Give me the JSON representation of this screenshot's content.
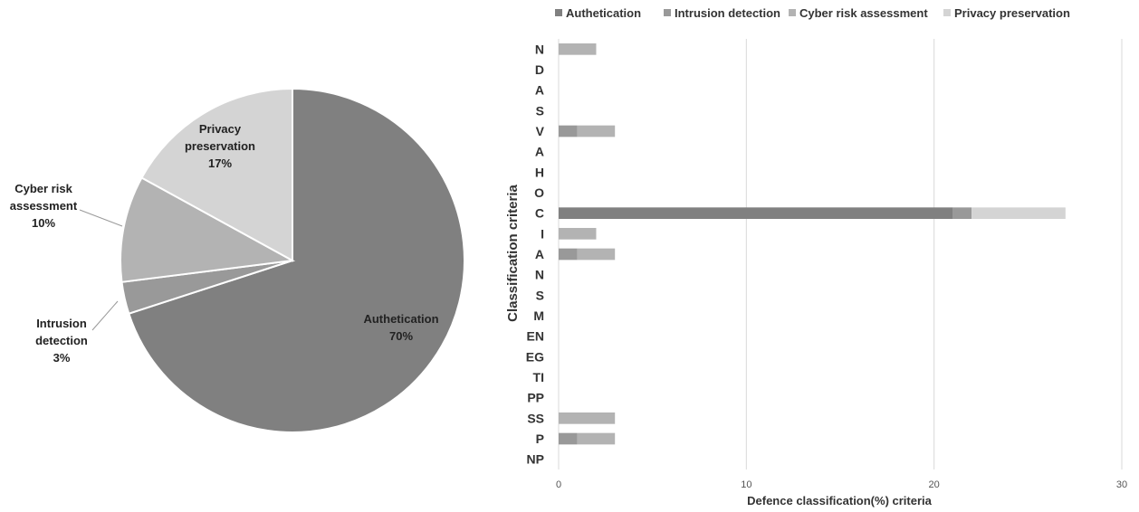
{
  "chart_data": [
    {
      "type": "pie",
      "labels": [
        "Authetication",
        "Intrusion detection",
        "Cyber risk assessment",
        "Privacy preservation"
      ],
      "label_lines": [
        [
          "Authetication"
        ],
        [
          "Intrusion",
          "detection"
        ],
        [
          "Cyber risk",
          "assessment"
        ],
        [
          "Privacy",
          "preservation"
        ]
      ],
      "values": [
        70,
        3,
        10,
        17
      ],
      "percent_labels": [
        "70%",
        "3%",
        "10%",
        "17%"
      ],
      "colors": [
        "#808080",
        "#999999",
        "#b3b3b3",
        "#d4d4d4"
      ]
    },
    {
      "type": "bar",
      "orientation": "horizontal",
      "stacked": true,
      "categories": [
        "N",
        "D",
        "A",
        "S",
        "V",
        "A",
        "H",
        "O",
        "C",
        "I",
        "A",
        "N",
        "S",
        "M",
        "EN",
        "EG",
        "TI",
        "PP",
        "SS",
        "P",
        "NP"
      ],
      "series": [
        {
          "name": "Authetication",
          "color": "#808080",
          "values": [
            0,
            0,
            0,
            0,
            0,
            0,
            0,
            0,
            21,
            0,
            0,
            0,
            0,
            0,
            0,
            0,
            0,
            0,
            0,
            0,
            0
          ]
        },
        {
          "name": "Intrusion detection",
          "color": "#999999",
          "values": [
            0,
            0,
            0,
            0,
            1,
            0,
            0,
            0,
            1,
            0,
            1,
            0,
            0,
            0,
            0,
            0,
            0,
            0,
            0,
            1,
            0
          ]
        },
        {
          "name": "Cyber risk assessment",
          "color": "#b3b3b3",
          "values": [
            2,
            0,
            0,
            0,
            2,
            0,
            0,
            0,
            0,
            2,
            2,
            0,
            0,
            0,
            0,
            0,
            0,
            0,
            3,
            2,
            0
          ]
        },
        {
          "name": "Privacy preservation",
          "color": "#d4d4d4",
          "values": [
            0,
            0,
            0,
            0,
            0,
            0,
            0,
            0,
            5,
            0,
            0,
            0,
            0,
            0,
            0,
            0,
            0,
            0,
            0,
            0,
            0
          ]
        }
      ],
      "xlim": [
        0,
        30
      ],
      "xticks": [
        "0",
        "10",
        "20",
        "30"
      ],
      "xlabel": "Defence classification(%) criteria",
      "ylabel": "Classification criteria",
      "legend_position": "top",
      "grid": "vertical"
    }
  ]
}
